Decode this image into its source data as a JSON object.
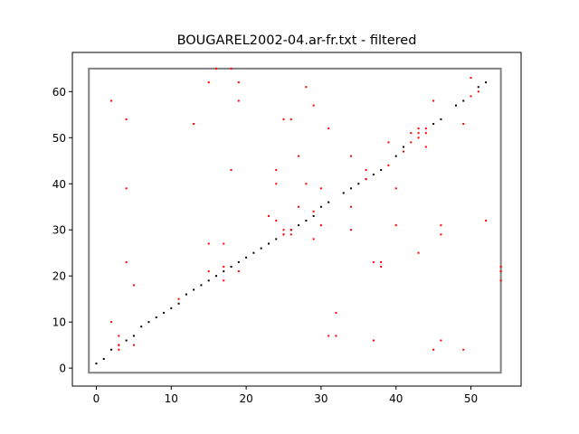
{
  "chart_data": {
    "type": "scatter",
    "title": "BOUGAREL2002-04.ar-fr.txt - filtered",
    "xlabel": "",
    "ylabel": "",
    "xlim": [
      -3.2,
      56.7
    ],
    "ylim": [
      -3.9,
      68.5
    ],
    "xticks": [
      0,
      10,
      20,
      30,
      40,
      50
    ],
    "yticks": [
      0,
      10,
      20,
      30,
      40,
      50,
      60
    ],
    "grid": false,
    "legend": "none",
    "box": {
      "x0": -1,
      "x1": 54,
      "y0": -1,
      "y1": 65,
      "color": "#808080"
    },
    "series": [
      {
        "color": "#000000",
        "points": [
          [
            0,
            1
          ],
          [
            1,
            2
          ],
          [
            2,
            4
          ],
          [
            3,
            5
          ],
          [
            4,
            6
          ],
          [
            5,
            7
          ],
          [
            6,
            9
          ],
          [
            7,
            10
          ],
          [
            8,
            11
          ],
          [
            9,
            12
          ],
          [
            10,
            13
          ],
          [
            11,
            14
          ],
          [
            12,
            16
          ],
          [
            13,
            17
          ],
          [
            14,
            18
          ],
          [
            15,
            19
          ],
          [
            16,
            20
          ],
          [
            17,
            21
          ],
          [
            18,
            22
          ],
          [
            19,
            23
          ],
          [
            20,
            24
          ],
          [
            21,
            25
          ],
          [
            22,
            26
          ],
          [
            23,
            27
          ],
          [
            24,
            28
          ],
          [
            25,
            29
          ],
          [
            26,
            30
          ],
          [
            27,
            31
          ],
          [
            28,
            32
          ],
          [
            29,
            33
          ],
          [
            30,
            35
          ],
          [
            31,
            36
          ],
          [
            33,
            38
          ],
          [
            34,
            39
          ],
          [
            35,
            40
          ],
          [
            36,
            41
          ],
          [
            37,
            42
          ],
          [
            38,
            43
          ],
          [
            40,
            46
          ],
          [
            41,
            48
          ],
          [
            45,
            53
          ],
          [
            46,
            54
          ],
          [
            48,
            57
          ],
          [
            49,
            58
          ],
          [
            51,
            61
          ],
          [
            52,
            62
          ]
        ]
      },
      {
        "color": "#ff0000",
        "points": [
          [
            2,
            58
          ],
          [
            2,
            10
          ],
          [
            3,
            7
          ],
          [
            3,
            5
          ],
          [
            3,
            4
          ],
          [
            4,
            54
          ],
          [
            4,
            39
          ],
          [
            4,
            23
          ],
          [
            5,
            18
          ],
          [
            5,
            5
          ],
          [
            11,
            15
          ],
          [
            13,
            53
          ],
          [
            15,
            62
          ],
          [
            15,
            27
          ],
          [
            15,
            21
          ],
          [
            16,
            65
          ],
          [
            17,
            27
          ],
          [
            17,
            22
          ],
          [
            17,
            19
          ],
          [
            18,
            65
          ],
          [
            18,
            43
          ],
          [
            19,
            62
          ],
          [
            19,
            58
          ],
          [
            19,
            21
          ],
          [
            23,
            33
          ],
          [
            24,
            43
          ],
          [
            24,
            40
          ],
          [
            24,
            32
          ],
          [
            25,
            54
          ],
          [
            25,
            30
          ],
          [
            25,
            29
          ],
          [
            26,
            54
          ],
          [
            26,
            30
          ],
          [
            26,
            29
          ],
          [
            27,
            46
          ],
          [
            27,
            35
          ],
          [
            28,
            61
          ],
          [
            28,
            40
          ],
          [
            29,
            57
          ],
          [
            29,
            34
          ],
          [
            29,
            28
          ],
          [
            30,
            39
          ],
          [
            30,
            31
          ],
          [
            31,
            52
          ],
          [
            31,
            7
          ],
          [
            32,
            12
          ],
          [
            32,
            7
          ],
          [
            34,
            46
          ],
          [
            34,
            35
          ],
          [
            34,
            30
          ],
          [
            36,
            43
          ],
          [
            36,
            41
          ],
          [
            37,
            23
          ],
          [
            37,
            6
          ],
          [
            38,
            23
          ],
          [
            38,
            22
          ],
          [
            39,
            49
          ],
          [
            39,
            44
          ],
          [
            40,
            39
          ],
          [
            40,
            31
          ],
          [
            41,
            47
          ],
          [
            42,
            49
          ],
          [
            42,
            51
          ],
          [
            43,
            52
          ],
          [
            43,
            51
          ],
          [
            43,
            50
          ],
          [
            43,
            25
          ],
          [
            44,
            52
          ],
          [
            44,
            51
          ],
          [
            44,
            48
          ],
          [
            45,
            58
          ],
          [
            45,
            4
          ],
          [
            46,
            31
          ],
          [
            46,
            29
          ],
          [
            46,
            6
          ],
          [
            49,
            53
          ],
          [
            49,
            4
          ],
          [
            50,
            63
          ],
          [
            50,
            59
          ],
          [
            51,
            60
          ],
          [
            52,
            32
          ],
          [
            54,
            22
          ],
          [
            54,
            21
          ],
          [
            54,
            19
          ]
        ]
      }
    ]
  }
}
